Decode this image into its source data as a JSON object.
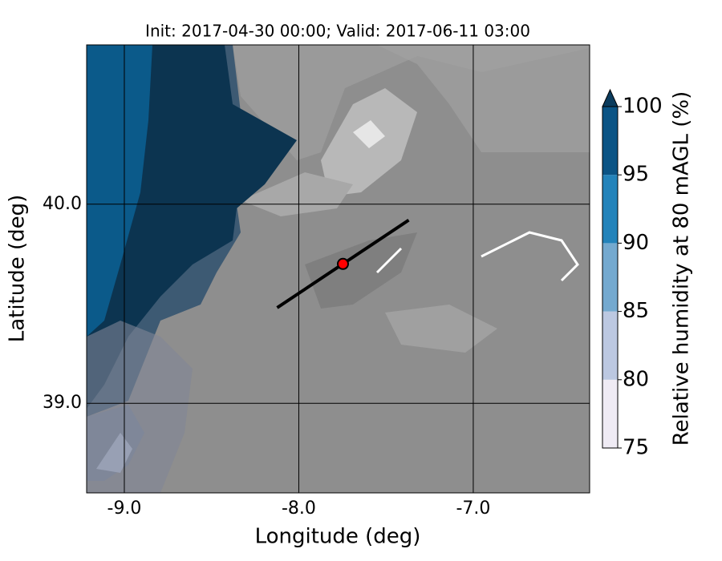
{
  "chart_data": {
    "type": "map",
    "title": "Init: 2017-04-30 00:00; Valid: 2017-06-11 03:00",
    "x_label": "Longitude (deg)",
    "y_label": "Latitude (deg)",
    "xlim": [
      -9.216,
      -6.333
    ],
    "ylim": [
      38.55,
      40.8
    ],
    "xticks": [
      {
        "value": -9,
        "label": "-9.0"
      },
      {
        "value": -8,
        "label": "-8.0"
      },
      {
        "value": -7,
        "label": "-7.0"
      }
    ],
    "yticks": [
      {
        "value": 39,
        "label": "39.0"
      },
      {
        "value": 40,
        "label": "40.0"
      }
    ],
    "grid": true,
    "transect": {
      "x": [
        -8.124,
        -7.37
      ],
      "y": [
        39.48,
        39.92
      ],
      "color": "#000000"
    },
    "point": {
      "x": -7.747,
      "y": 39.7,
      "color": "#ff0000"
    },
    "colorbar": {
      "label": "Relative humidity at 80 mAGL (%)",
      "ticks": [
        75,
        80,
        85,
        90,
        95,
        100
      ],
      "colors": [
        "#efebf4",
        "#bcc8e1",
        "#74a9cf",
        "#2383ba",
        "#0b5485"
      ],
      "extend_color": "#0b3c5d"
    }
  }
}
